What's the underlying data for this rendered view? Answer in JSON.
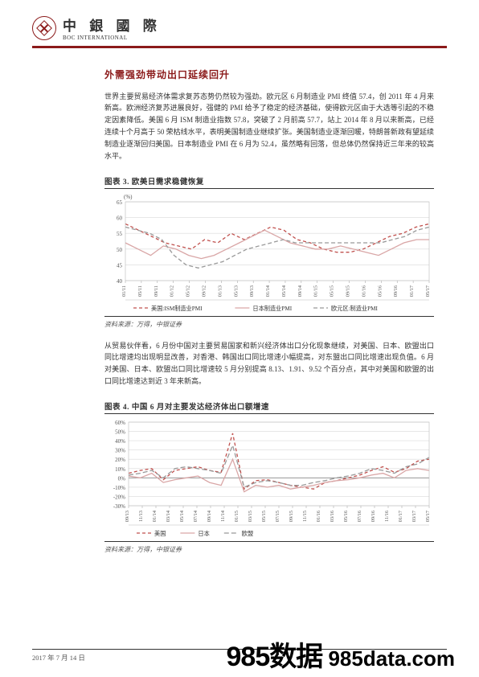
{
  "header": {
    "logo_cn": "中 銀 國 際",
    "logo_en": "BOC INTERNATIONAL"
  },
  "section": {
    "title": "外需强劲带动出口延续回升",
    "para1": "世界主要贸易经济体需求复苏态势仍然较为强劲。欧元区 6 月制造业 PMI 终值 57.4，创 2011 年 4 月来新高。欧洲经济复苏进展良好，强健的 PMI 给予了稳定的经济基础，使得欧元区由于大选等引起的不稳定因素降低。美国 6 月 ISM 制造业指数 57.8，突破了 2 月前高 57.7，站上 2014 年 8 月以来新高，已经连续十个月高于 50 荣枯线水平，表明美国制造业继续扩张。美国制造业逐渐回暖，特朗普新政有望延续制造业逐渐回归美国。日本制造业 PMI 在 6 月为 52.4，虽然略有回落，但总体仍然保持近三年来的较高水平。",
    "para2": "从贸易伙伴看，6 月份中国对主要贸易国家和新兴经济体出口分化现象继续，对美国、日本、欧盟出口同比增速均出现明显改善，对香港、韩国出口同比增速小幅提高，对东盟出口同比增速出现负值。6 月对美国、日本、欧盟出口同比增速较 5 月分别提高 8.13、1.91、9.52 个百分点，其中对美国和欧盟的出口同比增速达到近 3 年来新高。"
  },
  "chart1": {
    "caption": "图表 3. 欧美日需求稳健恢复",
    "ylabel": "(%)",
    "ylim": [
      40,
      65
    ],
    "ytick_step": 5,
    "x_labels": [
      "01/11",
      "05/11",
      "09/11",
      "01/12",
      "05/12",
      "09/12",
      "01/13",
      "05/13",
      "09/13",
      "01/14",
      "05/14",
      "09/14",
      "01/15",
      "05/15",
      "09/15",
      "01/16",
      "05/16",
      "09/16",
      "01/17",
      "05/17"
    ],
    "grid_color": "#d9d9d9",
    "background_color": "#ffffff",
    "series": {
      "us": {
        "label": "美国:ISM制造业PMI",
        "color": "#c0504d",
        "dash": "4,3",
        "width": 1.3,
        "values": [
          58,
          56,
          54,
          52,
          51,
          50,
          53,
          52,
          55,
          53,
          55,
          57,
          56,
          53,
          52,
          50,
          49,
          49,
          50,
          52,
          54,
          55,
          57,
          58
        ]
      },
      "jp": {
        "label": "日本制造业PMI",
        "color": "#d9a6a6",
        "dash": "none",
        "width": 1.3,
        "values": [
          52,
          50,
          48,
          51,
          50,
          48,
          47,
          48,
          50,
          52,
          54,
          56,
          54,
          52,
          51,
          50,
          50,
          51,
          50,
          49,
          48,
          50,
          52,
          53,
          53
        ]
      },
      "eu": {
        "label": "欧元区:制造业PMI",
        "color": "#999999",
        "dash": "5,3",
        "width": 1.3,
        "values": [
          57,
          56,
          55,
          53,
          48,
          45,
          44,
          45,
          46,
          48,
          50,
          51,
          52,
          53,
          52,
          52,
          52,
          52,
          52,
          52,
          52,
          52,
          53,
          54,
          56,
          57
        ]
      }
    },
    "source": "资料来源：万得，中银证券"
  },
  "chart2": {
    "caption": "图表 4. 中国 6 月对主要发达经济体出口额增速",
    "ylim": [
      -30,
      60
    ],
    "ytick_step": 10,
    "x_labels": [
      "09/13",
      "11/13",
      "01/14",
      "03/14",
      "05/14",
      "07/14",
      "09/14",
      "11/14",
      "01/15",
      "03/15",
      "05/15",
      "07/15",
      "09/15",
      "11/15",
      "01/16",
      "03/16",
      "05/16",
      "07/16",
      "09/16",
      "11/16",
      "01/17",
      "03/17",
      "05/17"
    ],
    "grid_color": "#d9d9d9",
    "background_color": "#ffffff",
    "series": {
      "us": {
        "label": "美国",
        "color": "#c0504d",
        "dash": "4,3",
        "width": 1.3,
        "values": [
          5,
          8,
          10,
          -2,
          8,
          10,
          12,
          8,
          6,
          48,
          -12,
          -3,
          -2,
          -5,
          -8,
          -10,
          -12,
          -5,
          -3,
          0,
          3,
          8,
          12,
          6,
          10,
          18,
          20
        ]
      },
      "jp": {
        "label": "日本",
        "color": "#d9a6a6",
        "dash": "none",
        "width": 1.3,
        "values": [
          2,
          0,
          5,
          -5,
          -2,
          0,
          2,
          -5,
          -8,
          20,
          -15,
          -8,
          -10,
          -8,
          -12,
          -10,
          -8,
          -5,
          -3,
          -2,
          0,
          3,
          5,
          0,
          8,
          10,
          8
        ]
      },
      "eu": {
        "label": "欧盟",
        "color": "#999999",
        "dash": "6,3",
        "width": 1.3,
        "values": [
          3,
          5,
          8,
          0,
          10,
          12,
          10,
          8,
          5,
          35,
          -10,
          -5,
          -3,
          -5,
          -8,
          -8,
          -5,
          -3,
          0,
          2,
          5,
          10,
          8,
          5,
          12,
          15,
          22
        ]
      }
    },
    "source": "资料来源：万得，中银证券"
  },
  "footer": {
    "date": "2017 年 7 月 14 日"
  },
  "watermark": {
    "a": "985数据",
    "b": " 985data.com"
  }
}
